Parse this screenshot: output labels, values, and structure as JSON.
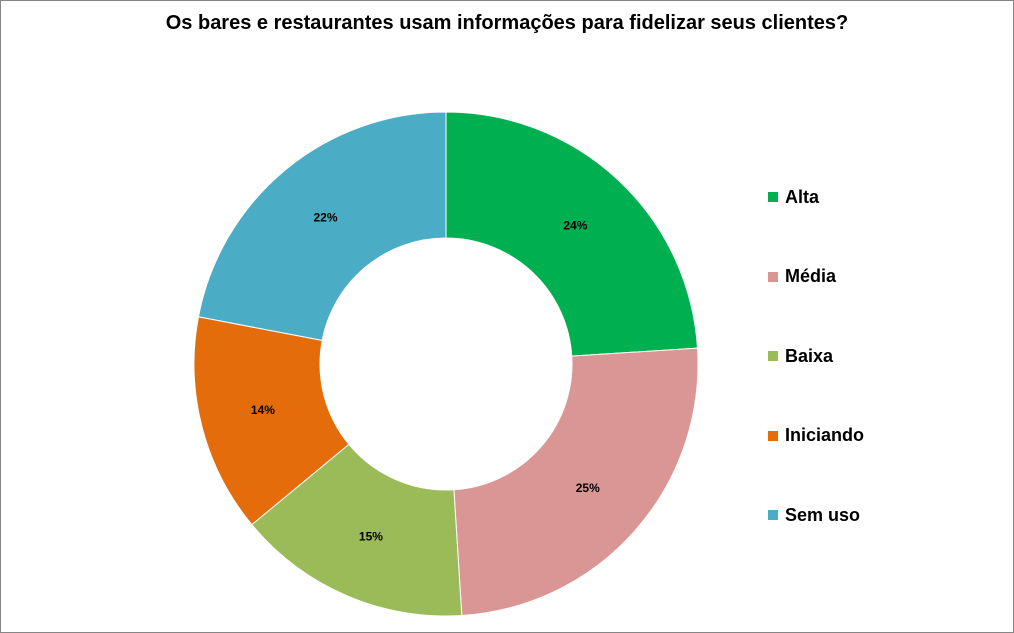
{
  "chart_data": {
    "type": "pie",
    "title": "Os bares e restaurantes usam informações para  fidelizar seus clientes?",
    "categories": [
      "Alta",
      "Média",
      "Baixa",
      "Iniciando",
      "Sem uso"
    ],
    "values": [
      24,
      25,
      15,
      14,
      22
    ],
    "labels": [
      "24%",
      "25%",
      "15%",
      "14%",
      "22%"
    ],
    "colors": [
      "#00b050",
      "#d99694",
      "#9bbb59",
      "#e46c0a",
      "#4bacc6"
    ],
    "style": "doughnut",
    "legend_position": "right"
  }
}
